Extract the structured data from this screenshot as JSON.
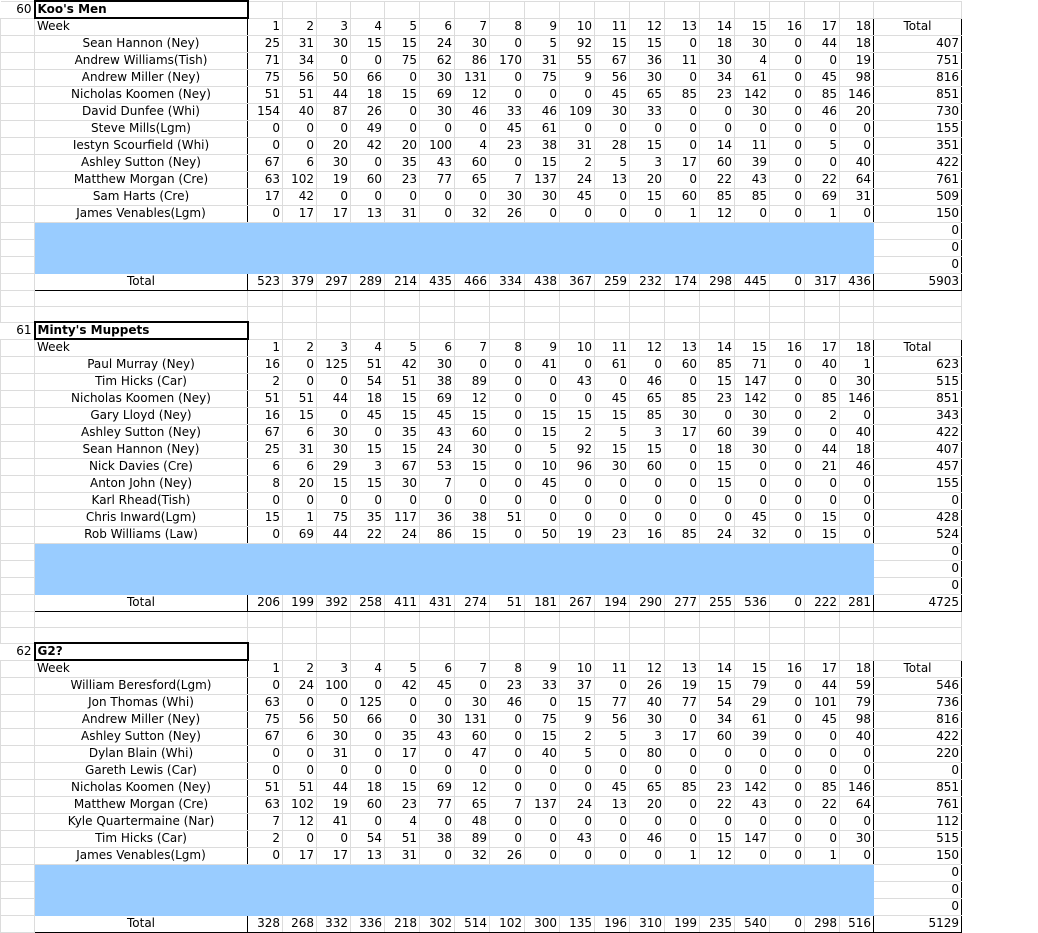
{
  "week_header": "Week",
  "total_header": "Total",
  "total_row_label": "Total",
  "weeks": [
    "1",
    "2",
    "3",
    "4",
    "5",
    "6",
    "7",
    "8",
    "9",
    "10",
    "11",
    "12",
    "13",
    "14",
    "15",
    "16",
    "17",
    "18"
  ],
  "highlight_color": "#99ccff",
  "teams": [
    {
      "number": "60",
      "name": "Koo's Men",
      "players": [
        {
          "name": "Sean Hannon (Ney)",
          "scores": [
            "25",
            "31",
            "30",
            "15",
            "15",
            "24",
            "30",
            "0",
            "5",
            "92",
            "15",
            "15",
            "0",
            "18",
            "30",
            "0",
            "44",
            "18"
          ],
          "total": "407"
        },
        {
          "name": "Andrew Williams(Tish)",
          "scores": [
            "71",
            "34",
            "0",
            "0",
            "75",
            "62",
            "86",
            "170",
            "31",
            "55",
            "67",
            "36",
            "11",
            "30",
            "4",
            "0",
            "0",
            "19"
          ],
          "total": "751"
        },
        {
          "name": "Andrew Miller (Ney)",
          "scores": [
            "75",
            "56",
            "50",
            "66",
            "0",
            "30",
            "131",
            "0",
            "75",
            "9",
            "56",
            "30",
            "0",
            "34",
            "61",
            "0",
            "45",
            "98"
          ],
          "total": "816"
        },
        {
          "name": "Nicholas Koomen (Ney)",
          "scores": [
            "51",
            "51",
            "44",
            "18",
            "15",
            "69",
            "12",
            "0",
            "0",
            "0",
            "45",
            "65",
            "85",
            "23",
            "142",
            "0",
            "85",
            "146"
          ],
          "total": "851"
        },
        {
          "name": "David Dunfee (Whi)",
          "scores": [
            "154",
            "40",
            "87",
            "26",
            "0",
            "30",
            "46",
            "33",
            "46",
            "109",
            "30",
            "33",
            "0",
            "0",
            "30",
            "0",
            "46",
            "20"
          ],
          "total": "730"
        },
        {
          "name": "Steve Mills(Lgm)",
          "scores": [
            "0",
            "0",
            "0",
            "49",
            "0",
            "0",
            "0",
            "45",
            "61",
            "0",
            "0",
            "0",
            "0",
            "0",
            "0",
            "0",
            "0",
            "0"
          ],
          "total": "155"
        },
        {
          "name": "Iestyn Scourfield (Whi)",
          "scores": [
            "0",
            "0",
            "20",
            "42",
            "20",
            "100",
            "4",
            "23",
            "38",
            "31",
            "28",
            "15",
            "0",
            "14",
            "11",
            "0",
            "5",
            "0"
          ],
          "total": "351"
        },
        {
          "name": "Ashley Sutton (Ney)",
          "scores": [
            "67",
            "6",
            "30",
            "0",
            "35",
            "43",
            "60",
            "0",
            "15",
            "2",
            "5",
            "3",
            "17",
            "60",
            "39",
            "0",
            "0",
            "40"
          ],
          "total": "422"
        },
        {
          "name": "Matthew Morgan (Cre)",
          "scores": [
            "63",
            "102",
            "19",
            "60",
            "23",
            "77",
            "65",
            "7",
            "137",
            "24",
            "13",
            "20",
            "0",
            "22",
            "43",
            "0",
            "22",
            "64"
          ],
          "total": "761"
        },
        {
          "name": "Sam Harts (Cre)",
          "scores": [
            "17",
            "42",
            "0",
            "0",
            "0",
            "0",
            "0",
            "30",
            "30",
            "45",
            "0",
            "15",
            "60",
            "85",
            "85",
            "0",
            "69",
            "31"
          ],
          "total": "509"
        },
        {
          "name": "James Venables(Lgm)",
          "scores": [
            "0",
            "17",
            "17",
            "13",
            "31",
            "0",
            "32",
            "26",
            "0",
            "0",
            "0",
            "0",
            "1",
            "12",
            "0",
            "0",
            "1",
            "0"
          ],
          "total": "150"
        }
      ],
      "empty_totals": [
        "0",
        "0",
        "0"
      ],
      "week_totals": [
        "523",
        "379",
        "297",
        "289",
        "214",
        "435",
        "466",
        "334",
        "438",
        "367",
        "259",
        "232",
        "174",
        "298",
        "445",
        "0",
        "317",
        "436"
      ],
      "grand_total": "5903"
    },
    {
      "number": "61",
      "name": "Minty's Muppets",
      "players": [
        {
          "name": "Paul Murray (Ney)",
          "scores": [
            "16",
            "0",
            "125",
            "51",
            "42",
            "30",
            "0",
            "0",
            "41",
            "0",
            "61",
            "0",
            "60",
            "85",
            "71",
            "0",
            "40",
            "1"
          ],
          "total": "623"
        },
        {
          "name": "Tim Hicks (Car)",
          "scores": [
            "2",
            "0",
            "0",
            "54",
            "51",
            "38",
            "89",
            "0",
            "0",
            "43",
            "0",
            "46",
            "0",
            "15",
            "147",
            "0",
            "0",
            "30"
          ],
          "total": "515"
        },
        {
          "name": "Nicholas Koomen (Ney)",
          "scores": [
            "51",
            "51",
            "44",
            "18",
            "15",
            "69",
            "12",
            "0",
            "0",
            "0",
            "45",
            "65",
            "85",
            "23",
            "142",
            "0",
            "85",
            "146"
          ],
          "total": "851"
        },
        {
          "name": "Gary Lloyd (Ney)",
          "scores": [
            "16",
            "15",
            "0",
            "45",
            "15",
            "45",
            "15",
            "0",
            "15",
            "15",
            "15",
            "85",
            "30",
            "0",
            "30",
            "0",
            "2",
            "0"
          ],
          "total": "343"
        },
        {
          "name": "Ashley Sutton (Ney)",
          "scores": [
            "67",
            "6",
            "30",
            "0",
            "35",
            "43",
            "60",
            "0",
            "15",
            "2",
            "5",
            "3",
            "17",
            "60",
            "39",
            "0",
            "0",
            "40"
          ],
          "total": "422"
        },
        {
          "name": "Sean Hannon (Ney)",
          "scores": [
            "25",
            "31",
            "30",
            "15",
            "15",
            "24",
            "30",
            "0",
            "5",
            "92",
            "15",
            "15",
            "0",
            "18",
            "30",
            "0",
            "44",
            "18"
          ],
          "total": "407"
        },
        {
          "name": "Nick Davies (Cre)",
          "scores": [
            "6",
            "6",
            "29",
            "3",
            "67",
            "53",
            "15",
            "0",
            "10",
            "96",
            "30",
            "60",
            "0",
            "15",
            "0",
            "0",
            "21",
            "46"
          ],
          "total": "457"
        },
        {
          "name": "Anton John (Ney)",
          "scores": [
            "8",
            "20",
            "15",
            "15",
            "30",
            "7",
            "0",
            "0",
            "45",
            "0",
            "0",
            "0",
            "0",
            "15",
            "0",
            "0",
            "0",
            "0"
          ],
          "total": "155"
        },
        {
          "name": "Karl Rhead(Tish)",
          "scores": [
            "0",
            "0",
            "0",
            "0",
            "0",
            "0",
            "0",
            "0",
            "0",
            "0",
            "0",
            "0",
            "0",
            "0",
            "0",
            "0",
            "0",
            "0"
          ],
          "total": "0"
        },
        {
          "name": "Chris Inward(Lgm)",
          "scores": [
            "15",
            "1",
            "75",
            "35",
            "117",
            "36",
            "38",
            "51",
            "0",
            "0",
            "0",
            "0",
            "0",
            "0",
            "45",
            "0",
            "15",
            "0"
          ],
          "total": "428"
        },
        {
          "name": "Rob Williams (Law)",
          "scores": [
            "0",
            "69",
            "44",
            "22",
            "24",
            "86",
            "15",
            "0",
            "50",
            "19",
            "23",
            "16",
            "85",
            "24",
            "32",
            "0",
            "15",
            "0"
          ],
          "total": "524"
        }
      ],
      "empty_totals": [
        "0",
        "0",
        "0"
      ],
      "week_totals": [
        "206",
        "199",
        "392",
        "258",
        "411",
        "431",
        "274",
        "51",
        "181",
        "267",
        "194",
        "290",
        "277",
        "255",
        "536",
        "0",
        "222",
        "281"
      ],
      "grand_total": "4725"
    },
    {
      "number": "62",
      "name": "G2?",
      "players": [
        {
          "name": "William Beresford(Lgm)",
          "scores": [
            "0",
            "24",
            "100",
            "0",
            "42",
            "45",
            "0",
            "23",
            "33",
            "37",
            "0",
            "26",
            "19",
            "15",
            "79",
            "0",
            "44",
            "59"
          ],
          "total": "546"
        },
        {
          "name": "Jon Thomas (Whi)",
          "scores": [
            "63",
            "0",
            "0",
            "125",
            "0",
            "0",
            "30",
            "46",
            "0",
            "15",
            "77",
            "40",
            "77",
            "54",
            "29",
            "0",
            "101",
            "79"
          ],
          "total": "736"
        },
        {
          "name": "Andrew Miller (Ney)",
          "scores": [
            "75",
            "56",
            "50",
            "66",
            "0",
            "30",
            "131",
            "0",
            "75",
            "9",
            "56",
            "30",
            "0",
            "34",
            "61",
            "0",
            "45",
            "98"
          ],
          "total": "816"
        },
        {
          "name": "Ashley Sutton (Ney)",
          "scores": [
            "67",
            "6",
            "30",
            "0",
            "35",
            "43",
            "60",
            "0",
            "15",
            "2",
            "5",
            "3",
            "17",
            "60",
            "39",
            "0",
            "0",
            "40"
          ],
          "total": "422"
        },
        {
          "name": "Dylan Blain (Whi)",
          "scores": [
            "0",
            "0",
            "31",
            "0",
            "17",
            "0",
            "47",
            "0",
            "40",
            "5",
            "0",
            "80",
            "0",
            "0",
            "0",
            "0",
            "0",
            "0"
          ],
          "total": "220"
        },
        {
          "name": "Gareth Lewis (Car)",
          "scores": [
            "0",
            "0",
            "0",
            "0",
            "0",
            "0",
            "0",
            "0",
            "0",
            "0",
            "0",
            "0",
            "0",
            "0",
            "0",
            "0",
            "0",
            "0"
          ],
          "total": "0"
        },
        {
          "name": "Nicholas Koomen (Ney)",
          "scores": [
            "51",
            "51",
            "44",
            "18",
            "15",
            "69",
            "12",
            "0",
            "0",
            "0",
            "45",
            "65",
            "85",
            "23",
            "142",
            "0",
            "85",
            "146"
          ],
          "total": "851"
        },
        {
          "name": "Matthew Morgan (Cre)",
          "scores": [
            "63",
            "102",
            "19",
            "60",
            "23",
            "77",
            "65",
            "7",
            "137",
            "24",
            "13",
            "20",
            "0",
            "22",
            "43",
            "0",
            "22",
            "64"
          ],
          "total": "761"
        },
        {
          "name": "Kyle Quartermaine (Nar)",
          "scores": [
            "7",
            "12",
            "41",
            "0",
            "4",
            "0",
            "48",
            "0",
            "0",
            "0",
            "0",
            "0",
            "0",
            "0",
            "0",
            "0",
            "0",
            "0"
          ],
          "total": "112"
        },
        {
          "name": "Tim Hicks (Car)",
          "scores": [
            "2",
            "0",
            "0",
            "54",
            "51",
            "38",
            "89",
            "0",
            "0",
            "43",
            "0",
            "46",
            "0",
            "15",
            "147",
            "0",
            "0",
            "30"
          ],
          "total": "515"
        },
        {
          "name": "James Venables(Lgm)",
          "scores": [
            "0",
            "17",
            "17",
            "13",
            "31",
            "0",
            "32",
            "26",
            "0",
            "0",
            "0",
            "0",
            "1",
            "12",
            "0",
            "0",
            "1",
            "0"
          ],
          "total": "150"
        }
      ],
      "empty_totals": [
        "0",
        "0",
        "0"
      ],
      "week_totals": [
        "328",
        "268",
        "332",
        "336",
        "218",
        "302",
        "514",
        "102",
        "300",
        "135",
        "196",
        "310",
        "199",
        "235",
        "540",
        "0",
        "298",
        "516"
      ],
      "grand_total": "5129"
    }
  ]
}
